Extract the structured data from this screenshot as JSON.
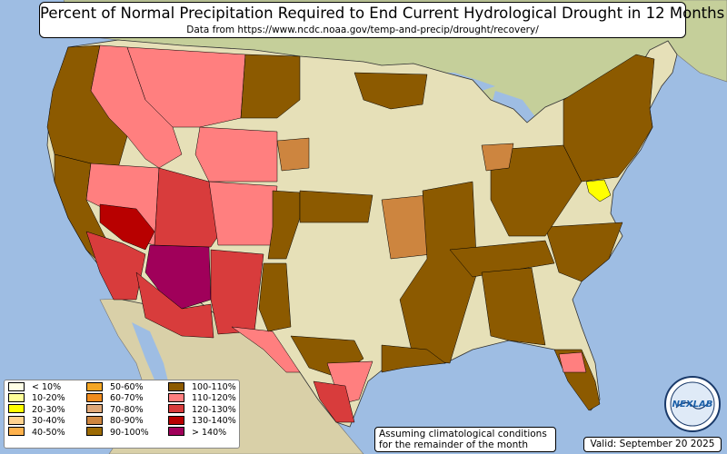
{
  "title": "Percent of Normal Precipitation Required to End Current Hydrological Drought in 12 Months",
  "subtitle": "Data from https://www.ncdc.noaa.gov/temp-and-precip/drought/recovery/",
  "legend": {
    "items": [
      {
        "label": "< 10%",
        "color": "#ffffe6"
      },
      {
        "label": "10-20%",
        "color": "#ffff99"
      },
      {
        "label": "20-30%",
        "color": "#ffff00"
      },
      {
        "label": "30-40%",
        "color": "#ffd38f"
      },
      {
        "label": "40-50%",
        "color": "#ffb24d"
      },
      {
        "label": "50-60%",
        "color": "#f5a623"
      },
      {
        "label": "60-70%",
        "color": "#f08c1e"
      },
      {
        "label": "70-80%",
        "color": "#e0a878"
      },
      {
        "label": "80-90%",
        "color": "#cd853f"
      },
      {
        "label": "90-100%",
        "color": "#9c6a04"
      },
      {
        "label": "100-110%",
        "color": "#8c5a00"
      },
      {
        "label": "110-120%",
        "color": "#ff7f7f"
      },
      {
        "label": "120-130%",
        "color": "#d83c3c"
      },
      {
        "label": "130-140%",
        "color": "#b80000"
      },
      {
        "label": "> 140%",
        "color": "#a0005a"
      }
    ]
  },
  "note": {
    "line1": "Assuming climatological conditions",
    "line2": "for the remainder of the month"
  },
  "valid": "Valid: September 20 2025",
  "logo_text": "NEXLAB"
}
